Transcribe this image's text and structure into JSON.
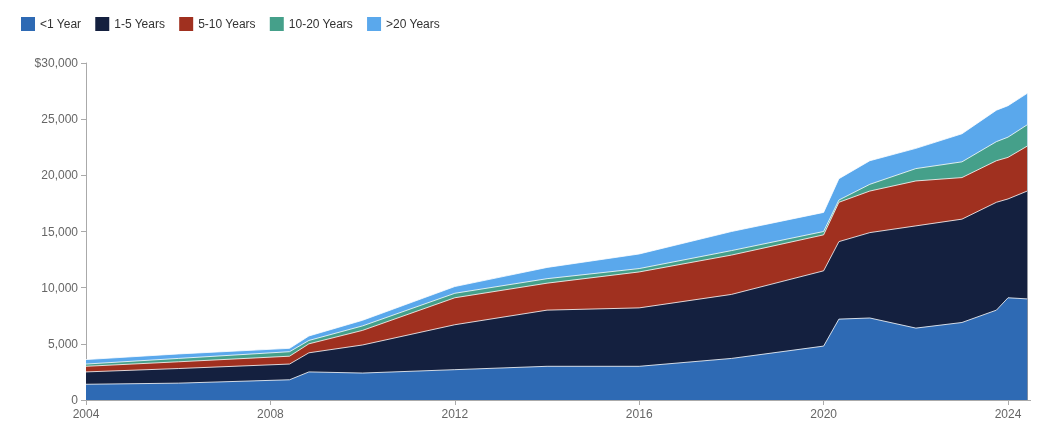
{
  "chart_data": {
    "type": "area",
    "stacked": true,
    "legend": "top left",
    "grid": false,
    "x": [
      "2004-01",
      "2006-01",
      "2008-06",
      "2008-11",
      "2010-01",
      "2012-01",
      "2014-01",
      "2016-01",
      "2018-01",
      "2020-01",
      "2020-05",
      "2021-01",
      "2022-01",
      "2023-01",
      "2023-10",
      "2024-01",
      "2024-06"
    ],
    "series": [
      {
        "name": "<1 Year",
        "color": "#2e6ab4",
        "values": [
          1400,
          1500,
          1800,
          2500,
          2400,
          2700,
          3000,
          3000,
          3700,
          4800,
          7200,
          7300,
          6400,
          6900,
          8000,
          9100,
          9000
        ]
      },
      {
        "name": "1-5 Years",
        "color": "#14203f",
        "values": [
          1100,
          1300,
          1400,
          1700,
          2500,
          4000,
          5000,
          5200,
          5700,
          6700,
          6900,
          7600,
          9100,
          9200,
          9600,
          8800,
          9600
        ]
      },
      {
        "name": "5-10 Years",
        "color": "#a0301f",
        "values": [
          500,
          600,
          700,
          800,
          1300,
          2400,
          2400,
          3200,
          3500,
          3200,
          3500,
          3700,
          4000,
          3700,
          3700,
          3700,
          4000
        ]
      },
      {
        "name": "10-20 Years",
        "color": "#45a08a",
        "values": [
          200,
          300,
          400,
          300,
          400,
          400,
          400,
          300,
          400,
          300,
          200,
          600,
          1100,
          1400,
          1700,
          1800,
          1900
        ]
      },
      {
        "name": ">20 Years",
        "color": "#5aa8ec",
        "values": [
          400,
          400,
          300,
          400,
          500,
          600,
          1000,
          1300,
          1700,
          1700,
          1900,
          2100,
          1800,
          2500,
          2800,
          2800,
          2800
        ]
      }
    ],
    "xlim": [
      "2004-01",
      "2024-07"
    ],
    "xticks": [
      "2004",
      "2008",
      "2012",
      "2016",
      "2020",
      "2024"
    ],
    "ylim": [
      0,
      30000
    ],
    "yticks": [
      0,
      {
        "value": 5000,
        "label": "5,000"
      },
      {
        "value": 10000,
        "label": "10,000"
      },
      {
        "value": 15000,
        "label": "15,000"
      },
      {
        "value": 20000,
        "label": "20,000"
      },
      {
        "value": 25000,
        "label": "25,000"
      },
      {
        "value": 30000,
        "label": "$30,000"
      }
    ]
  }
}
